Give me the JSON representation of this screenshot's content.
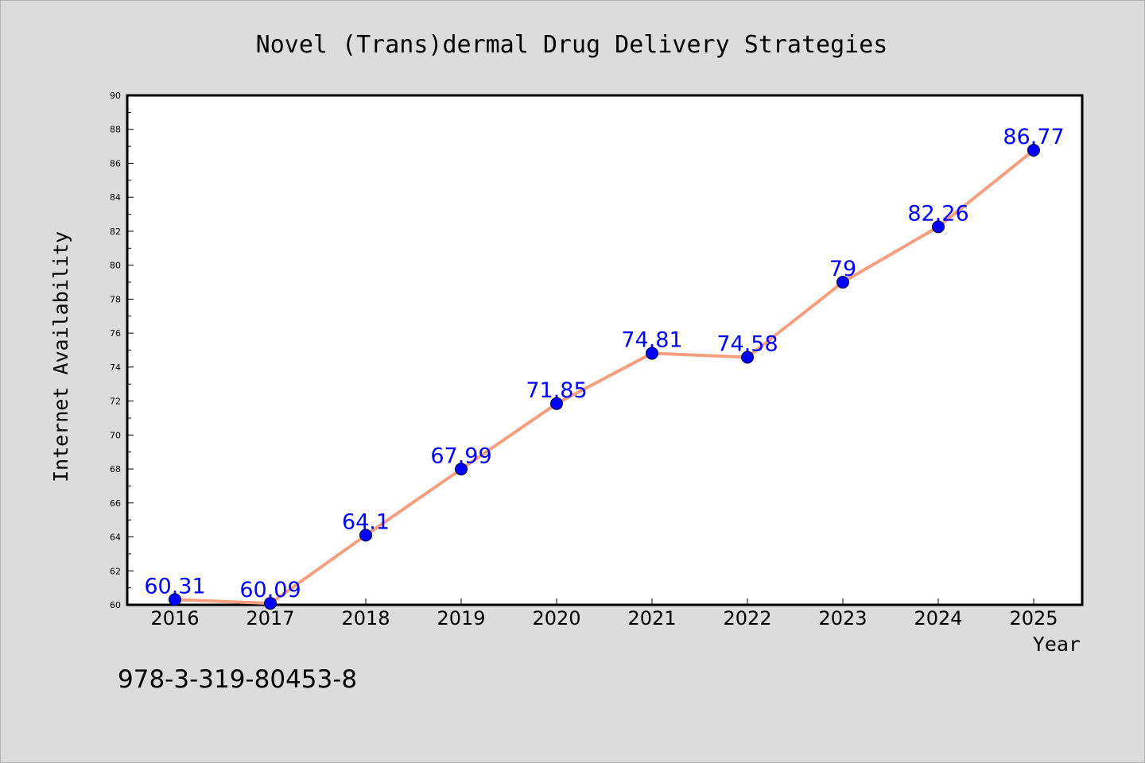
{
  "chart_data": {
    "type": "line",
    "title": "Novel (Trans)dermal Drug Delivery Strategies",
    "xlabel": "Year",
    "ylabel": "Internet Availability",
    "x": [
      "2016",
      "2017",
      "2018",
      "2019",
      "2020",
      "2021",
      "2022",
      "2023",
      "2024",
      "2025"
    ],
    "values": [
      60.31,
      60.09,
      64.1,
      67.99,
      71.85,
      74.81,
      74.58,
      79,
      82.26,
      86.77
    ],
    "data_labels": [
      "60.31",
      "60.09",
      "64.1",
      "67.99",
      "71.85",
      "74.81",
      "74.58",
      "79",
      "82.26",
      "86.77"
    ],
    "ylim": [
      60,
      90
    ],
    "yticks": [
      "60",
      "62",
      "64",
      "66",
      "68",
      "70",
      "72",
      "74",
      "76",
      "78",
      "80",
      "82",
      "84",
      "86",
      "88",
      "90"
    ],
    "grid": false,
    "line_color": "#f4a080",
    "marker_color": "#0000ff",
    "label_color": "#0000ff"
  },
  "footer_text": "978-3-319-80453-8"
}
